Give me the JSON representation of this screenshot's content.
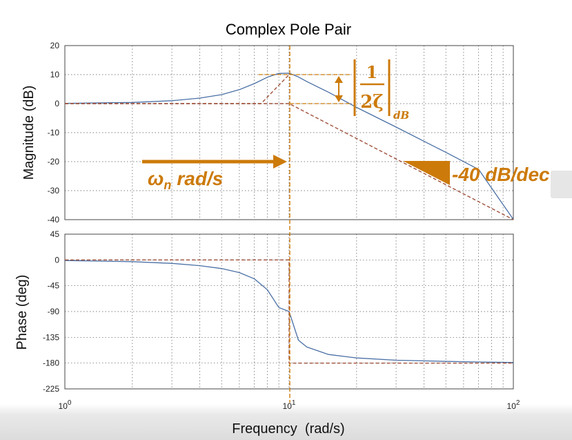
{
  "chart_data": [
    {
      "type": "line",
      "title": "Complex Pole Pair",
      "xlabel": "",
      "ylabel": "Magnitude (dB)",
      "xscale": "log",
      "xlim": [
        1,
        100
      ],
      "ylim": [
        -40,
        20
      ],
      "yticks": [
        "20",
        "10",
        "0",
        "-10",
        "-20",
        "-30",
        "-40"
      ],
      "grid": true,
      "series": [
        {
          "color": "#4a6fa5",
          "x": [
            1,
            2,
            3,
            4,
            5,
            6,
            7,
            8,
            9,
            10,
            11,
            12,
            15,
            20,
            30,
            50,
            70,
            100
          ],
          "y": [
            0.1,
            0.4,
            1.0,
            1.9,
            3.1,
            4.8,
            6.9,
            9.1,
            10.4,
            10.5,
            9.2,
            7.6,
            3.9,
            -1.3,
            -8.1,
            -16.8,
            -22.7,
            -39.9
          ]
        },
        {
          "color": "#a0503a",
          "x": [
            1,
            7.5,
            10
          ],
          "y": [
            0,
            0,
            10
          ]
        },
        {
          "color": "#a0503a",
          "x": [
            1,
            10,
            100
          ],
          "y": [
            0,
            0,
            -40
          ]
        }
      ],
      "annotations": {
        "wn_label": "ωn rad/s",
        "wn_main": "ω",
        "wn_sub": "n",
        "wn_rest": "rad/s",
        "peak_num": "1",
        "peak_den": "2ζ",
        "peak_sub": "dB",
        "slope_label": "-40 dB/dec",
        "accent_color": "#cc7a0a"
      }
    },
    {
      "type": "line",
      "title": "",
      "xlabel": "Frequency  (rad/s)",
      "ylabel": "Phase (deg)",
      "xscale": "log",
      "xlim": [
        1,
        100
      ],
      "ylim": [
        -225,
        45
      ],
      "yticks": [
        "45",
        "0",
        "-45",
        "-90",
        "-135",
        "-180",
        "-225"
      ],
      "xticks": [
        {
          "base": "10",
          "exp": "0"
        },
        {
          "base": "10",
          "exp": "1"
        },
        {
          "base": "10",
          "exp": "2"
        }
      ],
      "grid": true,
      "series": [
        {
          "color": "#4a6fa5",
          "x": [
            1,
            2,
            3,
            4,
            5,
            6,
            7,
            8,
            9,
            10,
            11,
            12,
            15,
            20,
            30,
            50,
            70,
            100
          ],
          "y": [
            -1,
            -3,
            -6,
            -10,
            -15,
            -22,
            -33,
            -52,
            -83,
            -90,
            -140,
            -152,
            -165,
            -171,
            -175,
            -177,
            -178,
            -179
          ]
        },
        {
          "color": "#a0503a",
          "x": [
            1,
            10,
            10,
            100
          ],
          "y": [
            0,
            0,
            -180,
            -180
          ]
        }
      ]
    }
  ]
}
